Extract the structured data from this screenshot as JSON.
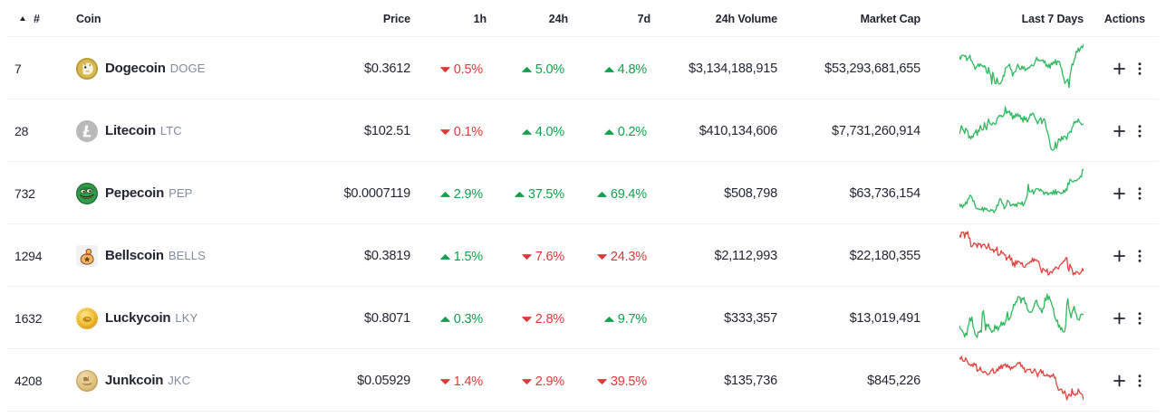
{
  "colors": {
    "up": "#0fa14b",
    "down": "#df3838",
    "spark_up": "#2eb95d",
    "spark_down": "#e2433d",
    "text_primary": "#222531",
    "text_secondary": "#808a9d",
    "divider": "#eff2f5"
  },
  "table": {
    "headers": {
      "rank": "#",
      "coin": "Coin",
      "price": "Price",
      "h1": "1h",
      "h24": "24h",
      "d7": "7d",
      "volume": "24h Volume",
      "market_cap": "Market Cap",
      "last7days": "Last 7 Days",
      "actions": "Actions"
    },
    "sort": {
      "column": "rank",
      "direction": "asc"
    },
    "row_action_icons": [
      "plus-icon",
      "kebab-menu-icon"
    ],
    "rows": [
      {
        "rank": "7",
        "name": "Dogecoin",
        "symbol": "DOGE",
        "icon": "doge",
        "price": "$0.3612",
        "h1": {
          "dir": "down",
          "value": "0.5%"
        },
        "h24": {
          "dir": "up",
          "value": "5.0%"
        },
        "d7": {
          "dir": "up",
          "value": "4.8%"
        },
        "volume": "$3,134,188,915",
        "market_cap": "$53,293,681,655",
        "spark": "doge",
        "spark_trend": "up"
      },
      {
        "rank": "28",
        "name": "Litecoin",
        "symbol": "LTC",
        "icon": "ltc",
        "price": "$102.51",
        "h1": {
          "dir": "down",
          "value": "0.1%"
        },
        "h24": {
          "dir": "up",
          "value": "4.0%"
        },
        "d7": {
          "dir": "up",
          "value": "0.2%"
        },
        "volume": "$410,134,606",
        "market_cap": "$7,731,260,914",
        "spark": "ltc",
        "spark_trend": "up"
      },
      {
        "rank": "732",
        "name": "Pepecoin",
        "symbol": "PEP",
        "icon": "pep",
        "price": "$0.0007119",
        "h1": {
          "dir": "up",
          "value": "2.9%"
        },
        "h24": {
          "dir": "up",
          "value": "37.5%"
        },
        "d7": {
          "dir": "up",
          "value": "69.4%"
        },
        "volume": "$508,798",
        "market_cap": "$63,736,154",
        "spark": "pep",
        "spark_trend": "up"
      },
      {
        "rank": "1294",
        "name": "Bellscoin",
        "symbol": "BELLS",
        "icon": "bells",
        "price": "$0.3819",
        "h1": {
          "dir": "up",
          "value": "1.5%"
        },
        "h24": {
          "dir": "down",
          "value": "7.6%"
        },
        "d7": {
          "dir": "down",
          "value": "24.3%"
        },
        "volume": "$2,112,993",
        "market_cap": "$22,180,355",
        "spark": "bells",
        "spark_trend": "down"
      },
      {
        "rank": "1632",
        "name": "Luckycoin",
        "symbol": "LKY",
        "icon": "lky",
        "price": "$0.8071",
        "h1": {
          "dir": "up",
          "value": "0.3%"
        },
        "h24": {
          "dir": "down",
          "value": "2.8%"
        },
        "d7": {
          "dir": "up",
          "value": "9.7%"
        },
        "volume": "$333,357",
        "market_cap": "$13,019,491",
        "spark": "lky",
        "spark_trend": "up"
      },
      {
        "rank": "4208",
        "name": "Junkcoin",
        "symbol": "JKC",
        "icon": "jkc",
        "price": "$0.05929",
        "h1": {
          "dir": "down",
          "value": "1.4%"
        },
        "h24": {
          "dir": "down",
          "value": "2.9%"
        },
        "d7": {
          "dir": "down",
          "value": "39.5%"
        },
        "volume": "$135,736",
        "market_cap": "$845,226",
        "spark": "jkc",
        "spark_trend": "down"
      }
    ]
  },
  "chart_data": [
    {
      "type": "line",
      "name": "Dogecoin last 7 days",
      "trend": "up",
      "color": "#2eb95d",
      "x_range": [
        0,
        1
      ],
      "y_normalized_top0": [
        0.284,
        0.347,
        0.257,
        0.259,
        0.249,
        0.278,
        0.263,
        0.376,
        0.325,
        0.311,
        0.251,
        0.371,
        0.387,
        0.452,
        0.48,
        0.581,
        0.523,
        0.503,
        0.453,
        0.513,
        0.448,
        0.487,
        0.493,
        0.522,
        0.488,
        0.53,
        0.643,
        0.676,
        0.536,
        0.667,
        0.703,
        0.918,
        0.643,
        0.747,
        0.895,
        0.908,
        0.771,
        0.885,
        0.913,
        0.911,
        0.875,
        0.825,
        0.712,
        0.731,
        0.547,
        0.53,
        0.515,
        0.491,
        0.456,
        0.569,
        0.593,
        0.734,
        0.65,
        0.642,
        0.615,
        0.529,
        0.458,
        0.522,
        0.57,
        0.578,
        0.5,
        0.564,
        0.512,
        0.609,
        0.564,
        0.574,
        0.533,
        0.543,
        0.508,
        0.473,
        0.486,
        0.5,
        0.445,
        0.371,
        0.301,
        0.376,
        0.352,
        0.385,
        0.373,
        0.367,
        0.357,
        0.425,
        0.379,
        0.506,
        0.466,
        0.534,
        0.455,
        0.554,
        0.424,
        0.469,
        0.402,
        0.439,
        0.354,
        0.473,
        0.382,
        0.399,
        0.397,
        0.516,
        0.553,
        0.709,
        0.776,
        0.9,
        0.873,
        0.829,
        0.799,
        1.0,
        0.745,
        0.585,
        0.449,
        0.474,
        0.363,
        0.304,
        0.161,
        0.182,
        0.087,
        0.164,
        0.094,
        0.045,
        0.079,
        0.0
      ]
    },
    {
      "type": "line",
      "name": "Litecoin last 7 days",
      "trend": "up",
      "color": "#2eb95d",
      "x_range": [
        0,
        1
      ],
      "y_normalized_top0": [
        0.621,
        0.527,
        0.431,
        0.512,
        0.549,
        0.618,
        0.496,
        0.527,
        0.567,
        0.721,
        0.677,
        0.741,
        0.675,
        0.709,
        0.608,
        0.598,
        0.534,
        0.659,
        0.538,
        0.571,
        0.424,
        0.505,
        0.541,
        0.525,
        0.366,
        0.475,
        0.533,
        0.366,
        0.278,
        0.378,
        0.405,
        0.421,
        0.372,
        0.372,
        0.408,
        0.394,
        0.281,
        0.245,
        0.198,
        0.216,
        0.199,
        0.237,
        0.212,
        0.162,
        0.0,
        0.156,
        0.106,
        0.132,
        0.096,
        0.195,
        0.141,
        0.286,
        0.201,
        0.257,
        0.163,
        0.223,
        0.161,
        0.227,
        0.192,
        0.288,
        0.255,
        0.353,
        0.217,
        0.306,
        0.25,
        0.352,
        0.313,
        0.249,
        0.166,
        0.195,
        0.144,
        0.159,
        0.229,
        0.289,
        0.328,
        0.394,
        0.327,
        0.294,
        0.253,
        0.387,
        0.327,
        0.275,
        0.314,
        0.481,
        0.55,
        0.636,
        0.736,
        0.889,
        0.981,
        1.0,
        0.995,
        0.974,
        0.813,
        0.962,
        0.875,
        0.743,
        0.745,
        0.795,
        0.685,
        0.759,
        0.685,
        0.678,
        0.699,
        0.756,
        0.622,
        0.606,
        0.566,
        0.589,
        0.48,
        0.441,
        0.34,
        0.378,
        0.332,
        0.358,
        0.28,
        0.353,
        0.371,
        0.413,
        0.409,
        0.393
      ]
    },
    {
      "type": "line",
      "name": "Pepecoin last 7 days",
      "trend": "up",
      "color": "#2eb95d",
      "x_range": [
        0,
        1
      ],
      "y_normalized_top0": [
        0.801,
        0.866,
        0.819,
        0.889,
        0.826,
        0.835,
        0.756,
        0.802,
        0.687,
        0.682,
        0.601,
        0.613,
        0.652,
        0.744,
        0.732,
        0.848,
        0.901,
        0.917,
        0.904,
        0.931,
        0.925,
        0.94,
        0.88,
        0.974,
        0.888,
        0.928,
        0.905,
        0.956,
        0.959,
        0.975,
        0.931,
        0.945,
        0.939,
        1.0,
        0.964,
        0.93,
        0.824,
        0.84,
        0.734,
        0.678,
        0.71,
        0.797,
        0.813,
        0.913,
        0.871,
        0.831,
        0.714,
        0.736,
        0.776,
        0.851,
        0.819,
        0.826,
        0.803,
        0.848,
        0.8,
        0.866,
        0.773,
        0.782,
        0.783,
        0.814,
        0.752,
        0.846,
        0.806,
        0.747,
        0.683,
        0.61,
        0.346,
        0.523,
        0.516,
        0.516,
        0.472,
        0.573,
        0.521,
        0.463,
        0.445,
        0.458,
        0.457,
        0.509,
        0.463,
        0.5,
        0.509,
        0.585,
        0.529,
        0.557,
        0.531,
        0.596,
        0.553,
        0.557,
        0.534,
        0.579,
        0.492,
        0.583,
        0.47,
        0.583,
        0.517,
        0.522,
        0.532,
        0.565,
        0.547,
        0.555,
        0.483,
        0.537,
        0.456,
        0.494,
        0.319,
        0.355,
        0.23,
        0.255,
        0.282,
        0.297,
        0.264,
        0.264,
        0.27,
        0.245,
        0.228,
        0.215,
        0.164,
        0.18,
        0.014,
        0.0
      ]
    },
    {
      "type": "line",
      "name": "Bellscoin last 7 days",
      "trend": "down",
      "color": "#e2433d",
      "x_range": [
        0,
        1
      ],
      "y_normalized_top0": [
        0.088,
        0.13,
        0.01,
        0.022,
        0.012,
        0.147,
        0.018,
        0.058,
        0.0,
        0.151,
        0.15,
        0.345,
        0.345,
        0.311,
        0.259,
        0.289,
        0.286,
        0.368,
        0.268,
        0.295,
        0.277,
        0.374,
        0.306,
        0.299,
        0.291,
        0.352,
        0.396,
        0.353,
        0.274,
        0.39,
        0.42,
        0.423,
        0.401,
        0.479,
        0.421,
        0.432,
        0.356,
        0.551,
        0.535,
        0.529,
        0.437,
        0.499,
        0.492,
        0.535,
        0.539,
        0.659,
        0.597,
        0.597,
        0.54,
        0.659,
        0.609,
        0.783,
        0.711,
        0.815,
        0.667,
        0.752,
        0.672,
        0.694,
        0.709,
        0.748,
        0.714,
        0.806,
        0.822,
        0.818,
        0.761,
        0.753,
        0.726,
        0.731,
        0.685,
        0.701,
        0.61,
        0.694,
        0.628,
        0.668,
        0.652,
        0.688,
        0.685,
        0.781,
        0.88,
        0.949,
        0.843,
        0.876,
        0.893,
        0.926,
        0.864,
        0.999,
        0.987,
        0.922,
        0.929,
        0.953,
        0.87,
        0.876,
        0.817,
        0.822,
        0.851,
        0.861,
        0.787,
        0.762,
        0.739,
        0.715,
        0.672,
        0.672,
        0.606,
        0.601,
        0.841,
        0.913,
        0.752,
        0.815,
        0.86,
        1.0,
        0.947,
        0.984,
        0.921,
        0.929,
        0.949,
        0.984,
        0.959,
        0.922,
        0.85,
        0.912
      ]
    },
    {
      "type": "line",
      "name": "Luckycoin last 7 days",
      "trend": "up",
      "color": "#2eb95d",
      "x_range": [
        0,
        1
      ],
      "y_normalized_top0": [
        0.731,
        0.811,
        0.825,
        0.864,
        0.901,
        0.991,
        0.899,
        0.95,
        0.775,
        0.698,
        0.549,
        0.624,
        0.528,
        0.755,
        0.808,
        0.931,
        0.959,
        1.0,
        0.871,
        0.885,
        0.846,
        0.881,
        0.446,
        0.383,
        0.569,
        0.838,
        0.69,
        0.748,
        0.7,
        0.802,
        0.812,
        0.887,
        0.851,
        0.857,
        0.718,
        0.807,
        0.744,
        0.841,
        0.755,
        0.746,
        0.644,
        0.724,
        0.649,
        0.719,
        0.649,
        0.56,
        0.415,
        0.604,
        0.572,
        0.536,
        0.419,
        0.37,
        0.238,
        0.262,
        0.178,
        0.181,
        0.065,
        0.061,
        0.076,
        0.209,
        0.093,
        0.125,
        0.085,
        0.224,
        0.212,
        0.34,
        0.383,
        0.42,
        0.416,
        0.423,
        0.373,
        0.318,
        0.231,
        0.167,
        0.142,
        0.262,
        0.29,
        0.342,
        0.334,
        0.435,
        0.336,
        0.312,
        0.096,
        0.15,
        0.0,
        0.135,
        0.052,
        0.135,
        0.189,
        0.282,
        0.326,
        0.499,
        0.574,
        0.63,
        0.605,
        0.764,
        0.716,
        0.824,
        0.77,
        0.869,
        0.878,
        0.851,
        0.691,
        0.223,
        0.11,
        0.336,
        0.44,
        0.547,
        0.423,
        0.359,
        0.283,
        0.424,
        0.45,
        0.579,
        0.588,
        0.605,
        0.488,
        0.458,
        0.473,
        0.471
      ]
    },
    {
      "type": "line",
      "name": "Junkcoin last 7 days",
      "trend": "down",
      "color": "#e2433d",
      "x_range": [
        0,
        1
      ],
      "y_normalized_top0": [
        0.033,
        0.067,
        0.0,
        0.094,
        0.11,
        0.111,
        0.033,
        0.082,
        0.136,
        0.192,
        0.185,
        0.219,
        0.182,
        0.234,
        0.153,
        0.199,
        0.174,
        0.344,
        0.322,
        0.311,
        0.246,
        0.342,
        0.354,
        0.378,
        0.341,
        0.361,
        0.389,
        0.426,
        0.409,
        0.391,
        0.336,
        0.318,
        0.278,
        0.39,
        0.38,
        0.356,
        0.29,
        0.334,
        0.233,
        0.289,
        0.193,
        0.283,
        0.193,
        0.207,
        0.168,
        0.248,
        0.189,
        0.253,
        0.23,
        0.308,
        0.243,
        0.28,
        0.23,
        0.239,
        0.221,
        0.185,
        0.142,
        0.162,
        0.131,
        0.234,
        0.201,
        0.275,
        0.257,
        0.37,
        0.334,
        0.296,
        0.303,
        0.302,
        0.292,
        0.374,
        0.381,
        0.351,
        0.287,
        0.334,
        0.381,
        0.467,
        0.383,
        0.355,
        0.3,
        0.389,
        0.334,
        0.448,
        0.442,
        0.449,
        0.41,
        0.457,
        0.435,
        0.484,
        0.437,
        0.462,
        0.401,
        0.495,
        0.482,
        0.643,
        0.699,
        0.781,
        0.773,
        0.755,
        0.757,
        0.848,
        0.847,
        0.792,
        0.882,
        1.0,
        0.921,
        0.867,
        0.9,
        0.918,
        0.747,
        0.872,
        0.866,
        0.902,
        0.857,
        0.869,
        0.751,
        0.814,
        0.853,
        0.863,
        0.887,
        0.999
      ]
    }
  ]
}
